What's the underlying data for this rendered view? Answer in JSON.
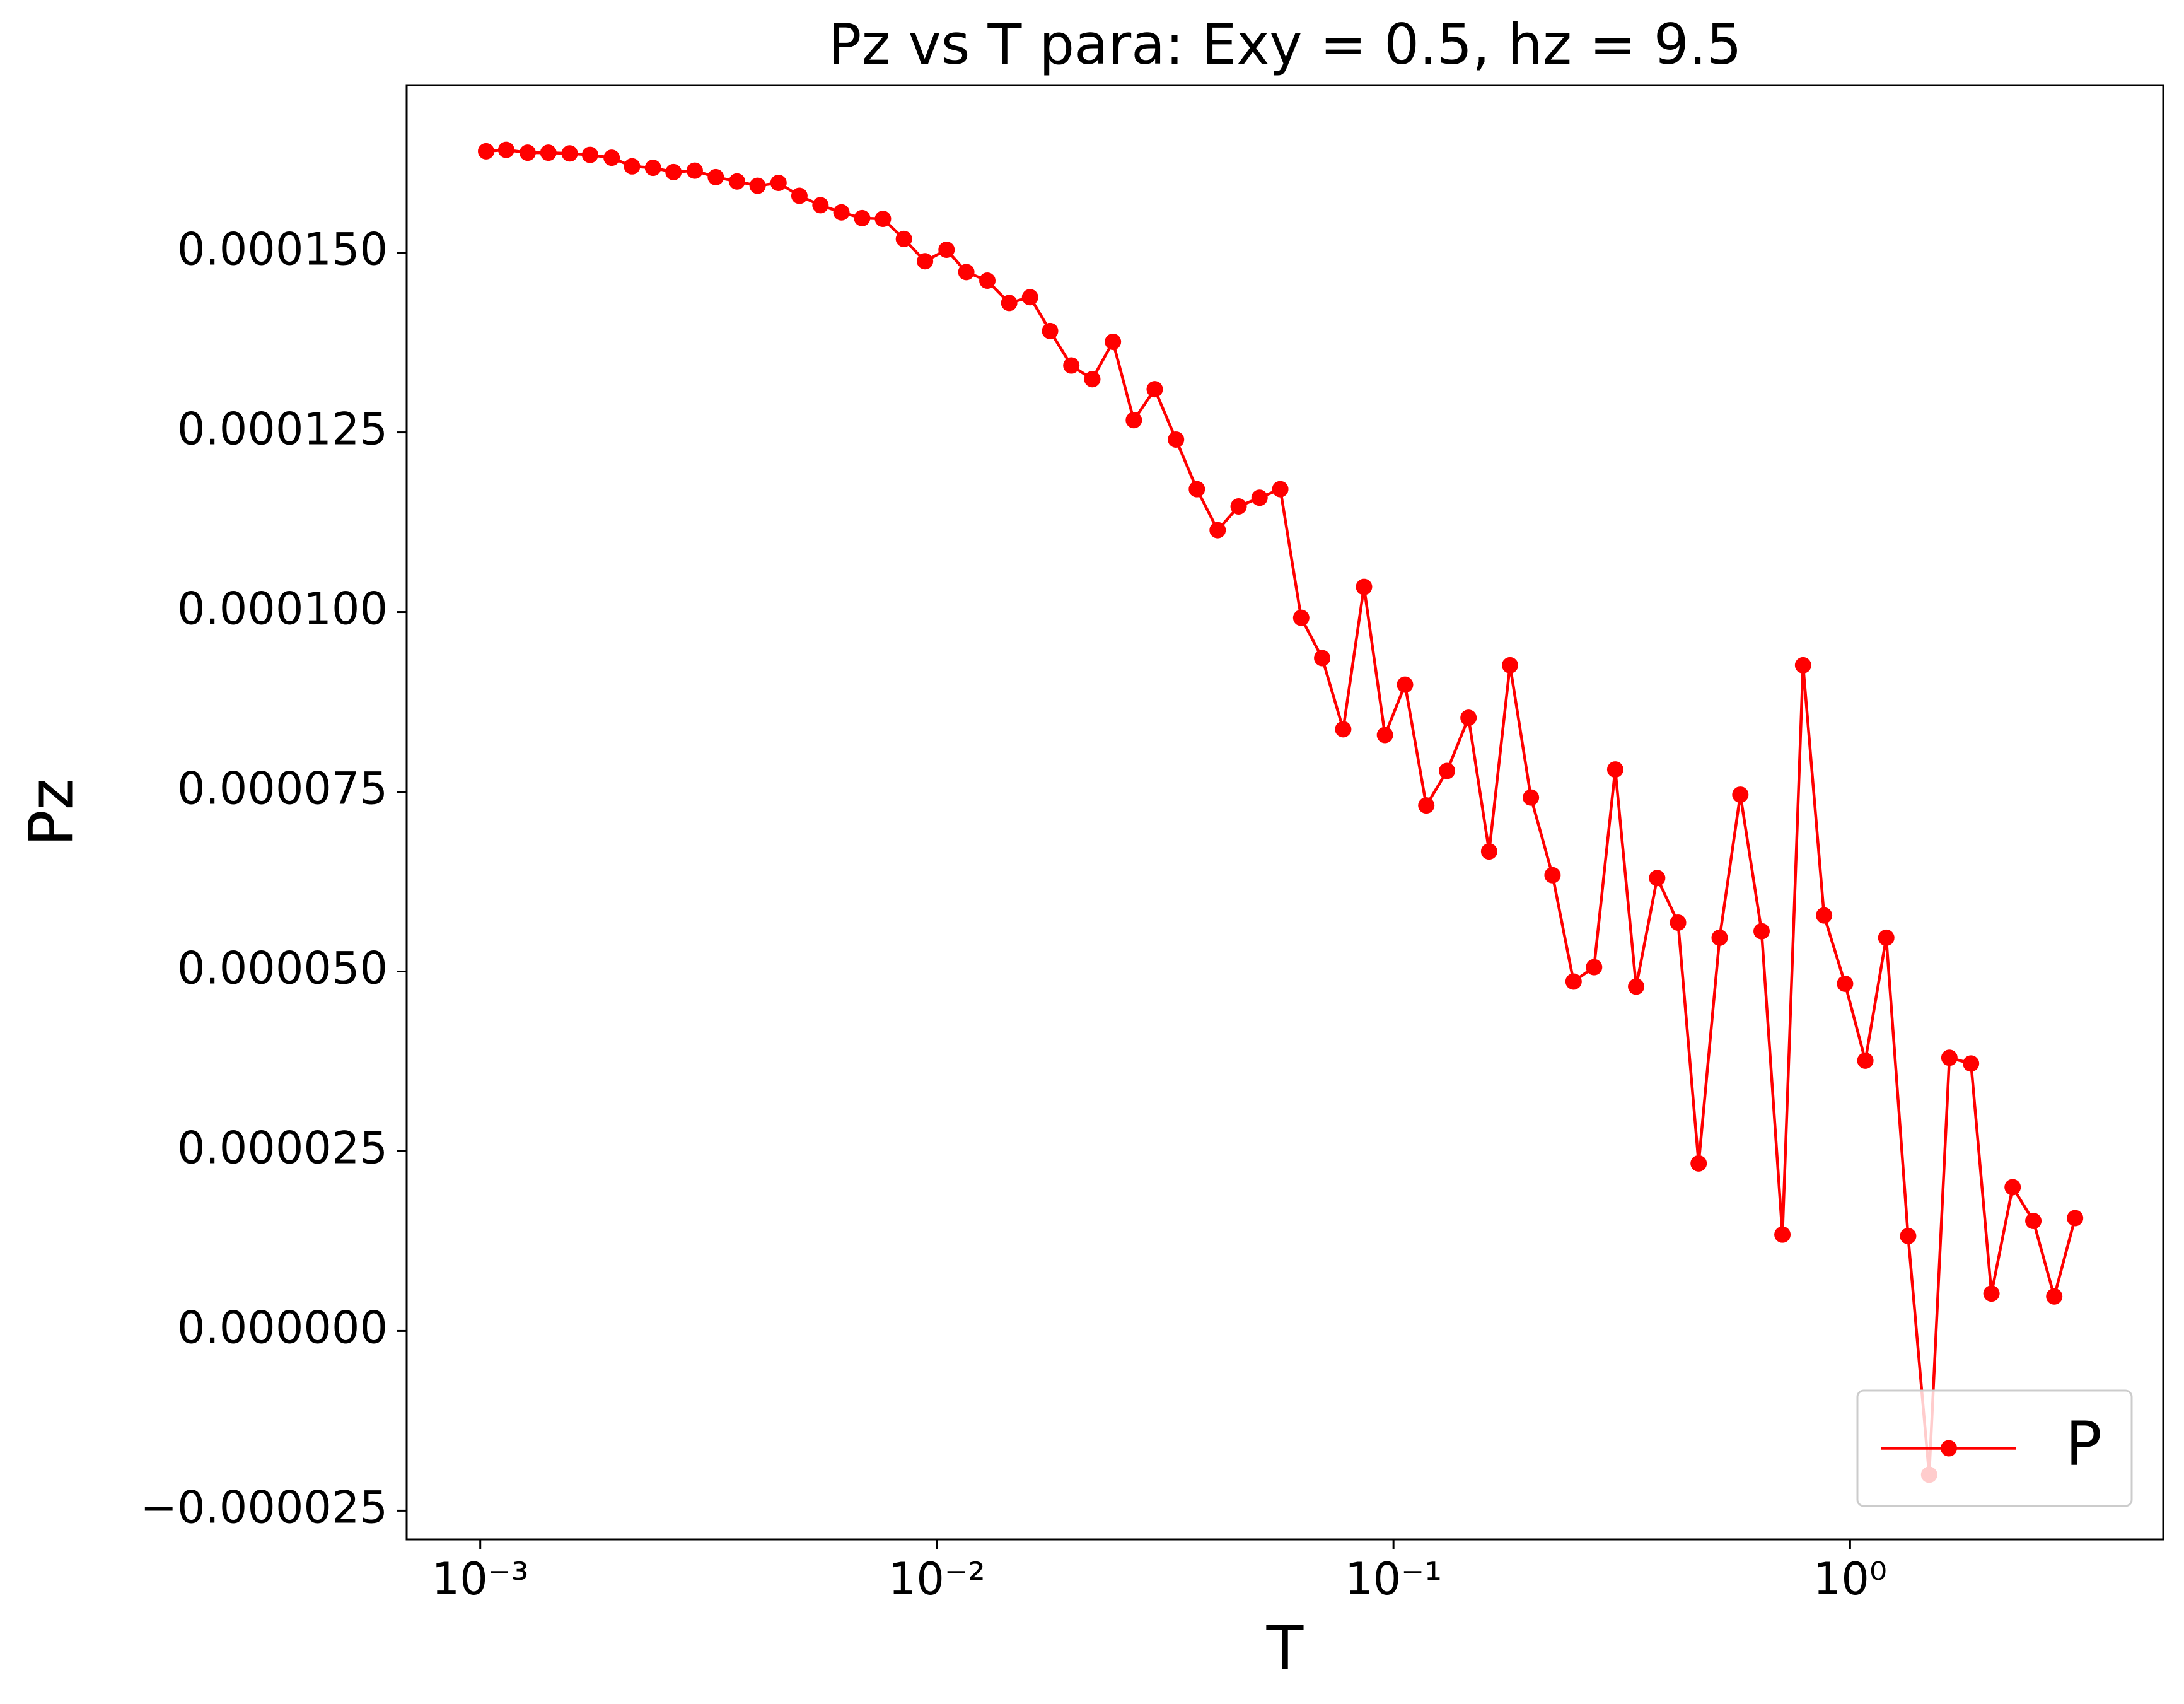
{
  "chart_data": {
    "type": "line",
    "title": "Pz vs T para: Exy = 0.5, hz = 9.5",
    "x_label": "T",
    "y_label": "Pz",
    "xscale": "log",
    "legend_loc": "lower right",
    "x": [
      0.00103,
      0.00114,
      0.00127,
      0.00141,
      0.00157,
      0.00174,
      0.00194,
      0.00215,
      0.00239,
      0.00265,
      0.00295,
      0.00328,
      0.00365,
      0.00405,
      0.0045,
      0.005,
      0.00556,
      0.00618,
      0.00686,
      0.00762,
      0.00847,
      0.00942,
      0.0105,
      0.0116,
      0.0129,
      0.0144,
      0.016,
      0.0177,
      0.0197,
      0.0219,
      0.0243,
      0.027,
      0.03,
      0.0334,
      0.0371,
      0.0412,
      0.0458,
      0.0509,
      0.0565,
      0.0628,
      0.0698,
      0.0776,
      0.0862,
      0.0958,
      0.106,
      0.118,
      0.131,
      0.146,
      0.162,
      0.18,
      0.2,
      0.223,
      0.248,
      0.275,
      0.306,
      0.34,
      0.378,
      0.42,
      0.466,
      0.518,
      0.575,
      0.64,
      0.711,
      0.789,
      0.877,
      0.975,
      1.08,
      1.2,
      1.34,
      1.49,
      1.65,
      1.84,
      2.04,
      2.27,
      2.52,
      2.8,
      3.11
    ],
    "series": [
      {
        "name": "P",
        "color": "#ff0000",
        "values": [
          0.0001641,
          0.0001643,
          0.0001639,
          0.0001639,
          0.0001638,
          0.0001636,
          0.0001632,
          0.000162,
          0.0001618,
          0.0001612,
          0.0001614,
          0.0001605,
          0.0001599,
          0.0001593,
          0.0001597,
          0.0001579,
          0.0001566,
          0.0001556,
          0.0001548,
          0.0001547,
          0.0001519,
          0.0001488,
          0.0001504,
          0.0001473,
          0.0001461,
          0.000143,
          0.0001438,
          0.0001391,
          0.0001343,
          0.0001324,
          0.0001376,
          0.0001267,
          0.000131,
          0.000124,
          0.0001171,
          0.0001114,
          0.0001147,
          0.0001159,
          0.0001171,
          9.92e-05,
          9.36e-05,
          8.37e-05,
          0.0001035,
          8.29e-05,
          8.99e-05,
          7.31e-05,
          7.79e-05,
          8.53e-05,
          6.67e-05,
          9.26e-05,
          7.42e-05,
          6.34e-05,
          4.86e-05,
          5.06e-05,
          7.81e-05,
          4.79e-05,
          6.3e-05,
          5.68e-05,
          2.33e-05,
          5.47e-05,
          7.46e-05,
          5.56e-05,
          1.34e-05,
          9.26e-05,
          5.78e-05,
          4.83e-05,
          3.76e-05,
          5.47e-05,
          1.32e-05,
          -2e-05,
          3.8e-05,
          3.72e-05,
          5.2e-06,
          2e-05,
          1.53e-05,
          4.8e-06,
          1.57e-05
        ]
      }
    ],
    "xlim": [
      0.00069,
      4.85
    ],
    "ylim": [
      -2.9e-05,
      0.0001733
    ],
    "xticks": [
      {
        "value": 0.001,
        "label": "10⁻³"
      },
      {
        "value": 0.01,
        "label": "10⁻²"
      },
      {
        "value": 0.1,
        "label": "10⁻¹"
      },
      {
        "value": 1,
        "label": "10⁰"
      }
    ],
    "yticks": [
      {
        "value": -2.5e-05,
        "label": "−0.000025"
      },
      {
        "value": 0,
        "label": "0.000000"
      },
      {
        "value": 2.5e-05,
        "label": "0.000025"
      },
      {
        "value": 5e-05,
        "label": "0.000050"
      },
      {
        "value": 7.5e-05,
        "label": "0.000075"
      },
      {
        "value": 0.0001,
        "label": "0.000100"
      },
      {
        "value": 0.000125,
        "label": "0.000125"
      },
      {
        "value": 0.00015,
        "label": "0.000150"
      }
    ]
  }
}
